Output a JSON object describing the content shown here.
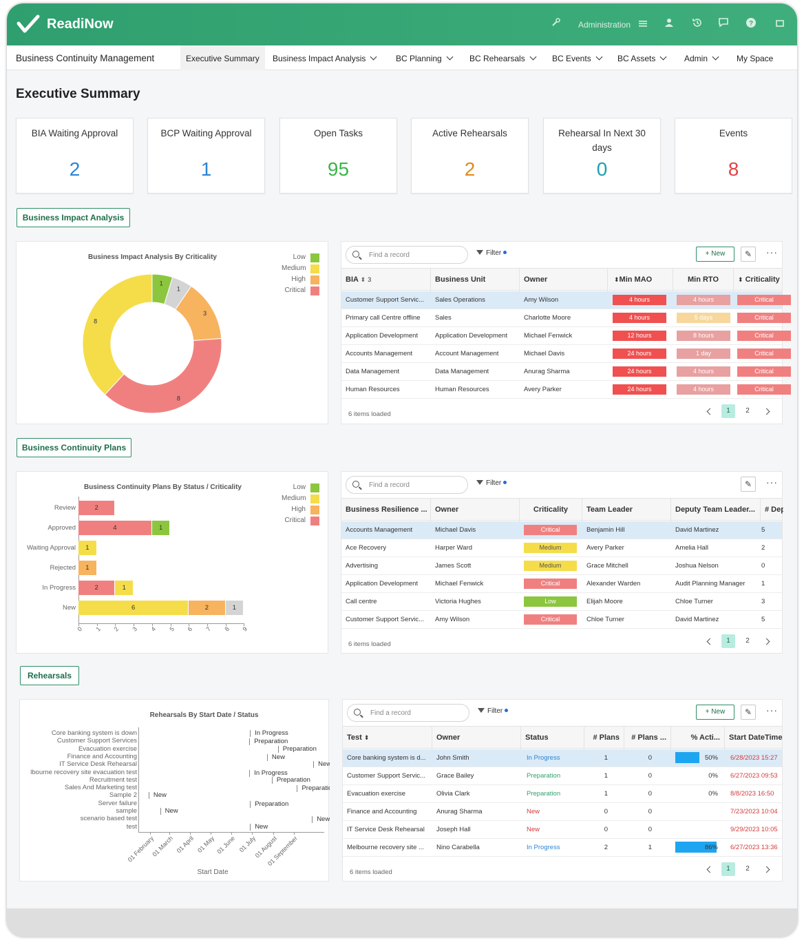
{
  "brand": {
    "logo_text": "ReadiNow",
    "accent": "#3aa676"
  },
  "topbar": {
    "admin_label": "Administration",
    "icons": [
      "wrench-icon",
      "menu-icon",
      "user-icon",
      "history-icon",
      "chat-icon",
      "help-icon",
      "fullscreen-icon"
    ]
  },
  "menubar": {
    "app_title": "Business Continuity Management",
    "items": [
      {
        "label": "Executive Summary",
        "has_chevron": false
      },
      {
        "label": "Business Impact Analysis",
        "has_chevron": true
      },
      {
        "label": "BC Planning",
        "has_chevron": true
      },
      {
        "label": "BC Rehearsals",
        "has_chevron": true
      },
      {
        "label": "BC Events",
        "has_chevron": true
      },
      {
        "label": "BC Assets",
        "has_chevron": true
      },
      {
        "label": "Admin",
        "has_chevron": true
      },
      {
        "label": "My Space",
        "has_chevron": false
      }
    ]
  },
  "page_title": "Executive Summary",
  "cards": [
    {
      "label": "BIA Waiting Approval",
      "value": "2",
      "color": "#2b84d6"
    },
    {
      "label": "BCP Waiting Approval",
      "value": "1",
      "color": "#2b84d6"
    },
    {
      "label": "Open Tasks",
      "value": "95",
      "color": "#3cb54a"
    },
    {
      "label": "Active Rehearsals",
      "value": "2",
      "color": "#e08a1a"
    },
    {
      "label": "Rehearsal In Next 30 days",
      "value": "0",
      "color": "#1b9fb0"
    },
    {
      "label": "Events",
      "value": "8",
      "color": "#e24444"
    }
  ],
  "legend": [
    {
      "label": "Low",
      "color": "#8cc63f"
    },
    {
      "label": "Medium",
      "color": "#f5dd4a"
    },
    {
      "label": "High",
      "color": "#f7b35e"
    },
    {
      "label": "Critical",
      "color": "#f08080"
    }
  ],
  "sections": {
    "bia": "Business Impact Analysis",
    "bcp": "Business Continuity Plans",
    "reh": "Rehearsals"
  },
  "bia_chart": {
    "title": "Business Impact Analysis By Criticality",
    "chart_data": {
      "type": "pie",
      "title": "Business Impact Analysis By Criticality",
      "slices": [
        {
          "label": "Low",
          "value": 1,
          "color": "#8cc63f"
        },
        {
          "label": "",
          "value": 1,
          "color": "#d4d4d4"
        },
        {
          "label": "High",
          "value": 3,
          "color": "#f7b35e"
        },
        {
          "label": "Critical",
          "value": 8,
          "color": "#f08080"
        },
        {
          "label": "Medium",
          "value": 8,
          "color": "#f5dd4a"
        }
      ]
    }
  },
  "bia_grid": {
    "search_placeholder": "Find a record",
    "filter_label": "Filter",
    "new_label": "New",
    "columns": [
      "BIA",
      "Business Unit",
      "Owner",
      "Min MAO",
      "Min RTO",
      "Criticality"
    ],
    "sort_badge": "3",
    "rows": [
      {
        "bia": "Customer Support Servic...",
        "unit": "Sales Operations",
        "owner": "Amy Wilson",
        "mao": "4 hours",
        "rto": "4 hours",
        "crit": "Critical"
      },
      {
        "bia": "Primary call Centre offline",
        "unit": "Sales",
        "owner": "Charlotte Moore",
        "mao": "4 hours",
        "rto": "5 days",
        "crit": "Critical"
      },
      {
        "bia": "Application Development",
        "unit": "Application Development",
        "owner": "Michael Fenwick",
        "mao": "12 hours",
        "rto": "8 hours",
        "crit": "Critical"
      },
      {
        "bia": "Accounts Management",
        "unit": "Account Management",
        "owner": "Michael Davis",
        "mao": "24 hours",
        "rto": "1 day",
        "crit": "Critical"
      },
      {
        "bia": "Data Management",
        "unit": "Data Management",
        "owner": "Anurag Sharma",
        "mao": "24 hours",
        "rto": "4 hours",
        "crit": "Critical"
      },
      {
        "bia": "Human Resources",
        "unit": "Human Resources",
        "owner": "Avery Parker",
        "mao": "24 hours",
        "rto": "4 hours",
        "crit": "Critical"
      }
    ],
    "footer": "6 items loaded",
    "pages": [
      "1",
      "2"
    ]
  },
  "bcp_chart": {
    "title": "Business Continuity Plans By Status / Criticality",
    "chart_data": {
      "type": "bar",
      "orientation": "horizontal",
      "stacked": true,
      "title": "Business Continuity Plans By Status / Criticality",
      "categories": [
        "Review",
        "Approved",
        "Waiting Approval",
        "Rejected",
        "In Progress",
        "New"
      ],
      "series": [
        {
          "name": "Critical",
          "color": "#f08080",
          "values": [
            2,
            4,
            0,
            0,
            2,
            0
          ]
        },
        {
          "name": "Medium",
          "color": "#f5dd4a",
          "values": [
            0,
            0,
            1,
            0,
            1,
            6
          ]
        },
        {
          "name": "High",
          "color": "#f7b35e",
          "values": [
            0,
            0,
            0,
            1,
            0,
            2
          ]
        },
        {
          "name": "Low",
          "color": "#8cc63f",
          "values": [
            0,
            1,
            0,
            0,
            0,
            0
          ]
        },
        {
          "name": "",
          "color": "#d4d4d4",
          "values": [
            0,
            0,
            0,
            0,
            0,
            1
          ]
        }
      ],
      "xlim": [
        0,
        9
      ],
      "ticks": [
        "0",
        "1",
        "2",
        "3",
        "4",
        "5",
        "6",
        "7",
        "8",
        "9"
      ]
    }
  },
  "bcp_grid": {
    "search_placeholder": "Find a record",
    "filter_label": "Filter",
    "columns": [
      "Business Resilience ...",
      "Owner",
      "Criticality",
      "Team Leader",
      "Deputy Team Leader...",
      "# Dep"
    ],
    "rows": [
      {
        "name": "Accounts Management",
        "owner": "Michael Davis",
        "crit": "Critical",
        "leader": "Benjamin Hill",
        "deputy": "David Martinez",
        "dep": "5"
      },
      {
        "name": "Ace Recovery",
        "owner": "Harper Ward",
        "crit": "Medium",
        "leader": "Avery Parker",
        "deputy": "Amelia Hall",
        "dep": "2"
      },
      {
        "name": "Advertising",
        "owner": "James Scott",
        "crit": "Medium",
        "leader": "Grace Mitchell",
        "deputy": "Joshua Nelson",
        "dep": "0"
      },
      {
        "name": "Application Development",
        "owner": "Michael Fenwick",
        "crit": "Critical",
        "leader": "Alexander Warden",
        "deputy": "Audit Planning Manager",
        "dep": "1"
      },
      {
        "name": "Call centre",
        "owner": "Victoria Hughes",
        "crit": "Low",
        "leader": "Elijah Moore",
        "deputy": "Chloe Turner",
        "dep": "3"
      },
      {
        "name": "Customer Support Servic...",
        "owner": "Amy Wilson",
        "crit": "Critical",
        "leader": "Chloe Turner",
        "deputy": "David Martinez",
        "dep": "5"
      }
    ],
    "footer": "6 items loaded",
    "pages": [
      "1",
      "2"
    ]
  },
  "reh_chart": {
    "title": "Rehearsals By Start Date / Status",
    "xlabel": "Start Date",
    "chart_data": {
      "type": "scatter",
      "title": "Rehearsals By Start Date / Status",
      "xlabel": "Start Date",
      "x_ticks": [
        "01 February",
        "01 March",
        "01 April",
        "01 May",
        "01 June",
        "01 July",
        "01 August",
        "01 September"
      ],
      "rows": [
        {
          "label": "Core banking system is down",
          "status": "In Progress",
          "x": "2023-06-28"
        },
        {
          "label": "Customer Support Services",
          "status": "Preparation",
          "x": "2023-06-27"
        },
        {
          "label": "Evacuation exercise",
          "status": "Preparation",
          "x": "2023-08-08"
        },
        {
          "label": "Finance and Accounting",
          "status": "New",
          "x": "2023-07-23"
        },
        {
          "label": "IT Service Desk Rehearsal",
          "status": "New",
          "x": "2023-09-29"
        },
        {
          "label": "lbourne recovery site evacuation test",
          "status": "In Progress",
          "x": "2023-06-27"
        },
        {
          "label": "Recruitment test",
          "status": "Preparation",
          "x": "2023-07-30"
        },
        {
          "label": "Sales And Marketing test",
          "status": "Preparation",
          "x": "2023-09-05"
        },
        {
          "label": "Sample 2",
          "status": "New",
          "x": "2023-01-30"
        },
        {
          "label": "Server failure",
          "status": "Preparation",
          "x": "2023-06-28"
        },
        {
          "label": "sample",
          "status": "New",
          "x": "2023-02-16"
        },
        {
          "label": "scenario based test",
          "status": "New",
          "x": "2023-09-27"
        },
        {
          "label": "test",
          "status": "New",
          "x": "2023-06-28"
        }
      ]
    }
  },
  "reh_grid": {
    "search_placeholder": "Find a record",
    "filter_label": "Filter",
    "new_label": "New",
    "columns": [
      "Test",
      "Owner",
      "Status",
      "# Plans",
      "# Plans ...",
      "% Acti...",
      "Start DateTime"
    ],
    "rows": [
      {
        "test": "Core banking system is d...",
        "owner": "John Smith",
        "status": "In Progress",
        "plans": "1",
        "plans2": "0",
        "pct": "50%",
        "pct_value": 50,
        "start": "6/28/2023 15:27"
      },
      {
        "test": "Customer Support Servic...",
        "owner": "Grace Bailey",
        "status": "Preparation",
        "plans": "1",
        "plans2": "0",
        "pct": "0%",
        "pct_value": 0,
        "start": "6/27/2023 09:53"
      },
      {
        "test": "Evacuation exercise",
        "owner": "Olivia Clark",
        "status": "Preparation",
        "plans": "1",
        "plans2": "0",
        "pct": "0%",
        "pct_value": 0,
        "start": "8/8/2023 16:50"
      },
      {
        "test": "Finance and Accounting",
        "owner": "Anurag Sharma",
        "status": "New",
        "plans": "0",
        "plans2": "0",
        "pct": "",
        "pct_value": 0,
        "start": "7/23/2023 10:04"
      },
      {
        "test": "IT Service Desk Rehearsal",
        "owner": "Joseph Hall",
        "status": "New",
        "plans": "0",
        "plans2": "0",
        "pct": "",
        "pct_value": 0,
        "start": "9/29/2023 10:05"
      },
      {
        "test": "Melbourne recovery site ...",
        "owner": "Nino Carabella",
        "status": "In Progress",
        "plans": "2",
        "plans2": "1",
        "pct": "86%",
        "pct_value": 86,
        "start": "6/27/2023 13:36"
      }
    ],
    "footer": "6 items loaded",
    "pages": [
      "1",
      "2"
    ]
  },
  "colors": {
    "critical_dark": "#f05050",
    "critical": "#f08080",
    "rto": "#e8a0a0",
    "medium": "#f5dd4a",
    "low": "#8cc63f",
    "high": "#f7b35e",
    "status_in_progress": "#2b84d6",
    "status_preparation": "#2f9f6f",
    "status_new": "#d63a3a",
    "progress": "#1ea5f0"
  }
}
